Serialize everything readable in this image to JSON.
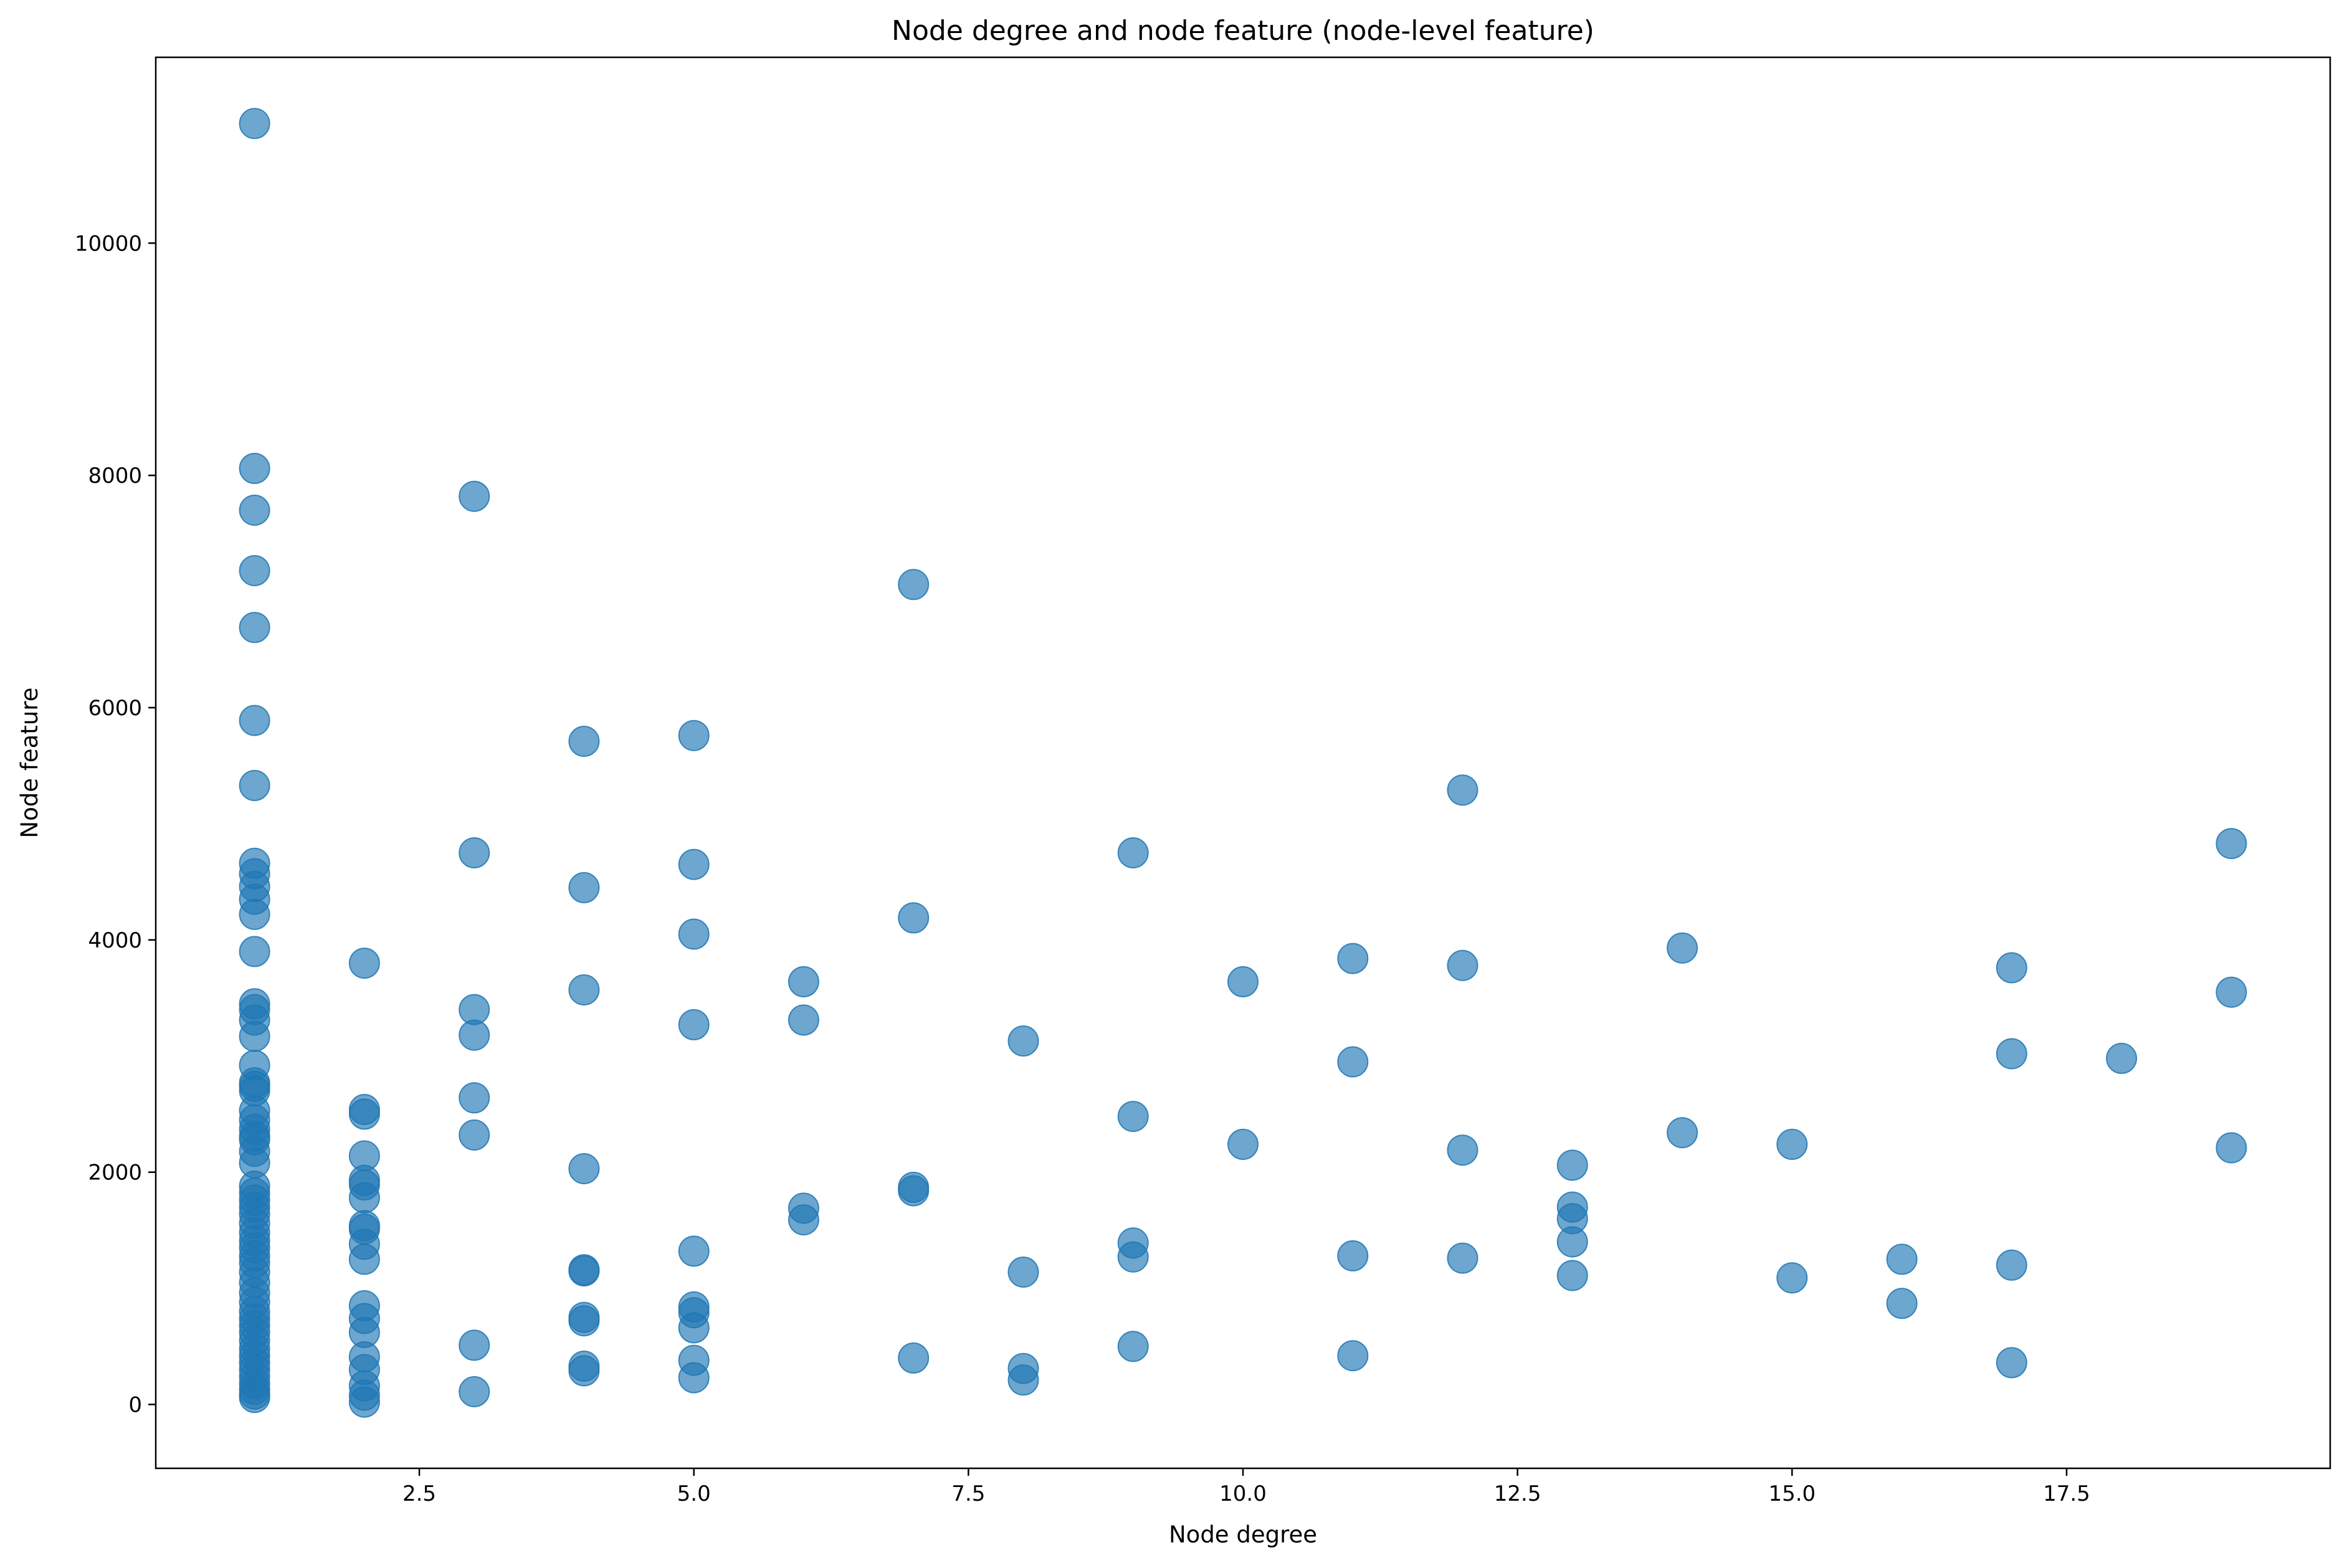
{
  "chart_data": {
    "type": "scatter",
    "title": "Node degree and node feature (node-level feature)",
    "xlabel": "Node degree",
    "ylabel": "Node feature",
    "xlim": [
      0.1,
      19.9
    ],
    "ylim": [
      -550,
      11600
    ],
    "xticks": [
      2.5,
      5.0,
      7.5,
      10.0,
      12.5,
      15.0,
      17.5
    ],
    "xtick_labels": [
      "2.5",
      "5.0",
      "7.5",
      "10.0",
      "12.5",
      "15.0",
      "17.5"
    ],
    "yticks": [
      0,
      2000,
      4000,
      6000,
      8000,
      10000
    ],
    "ytick_labels": [
      "0",
      "2000",
      "4000",
      "6000",
      "8000",
      "10000"
    ],
    "grid": false,
    "marker_color": "#1f77b4",
    "marker_alpha": 0.65,
    "series": [
      {
        "points": [
          [
            1,
            11030
          ],
          [
            1,
            8060
          ],
          [
            1,
            7700
          ],
          [
            1,
            7180
          ],
          [
            1,
            6690
          ],
          [
            1,
            5890
          ],
          [
            1,
            5330
          ],
          [
            1,
            4660
          ],
          [
            1,
            4570
          ],
          [
            1,
            4460
          ],
          [
            1,
            4350
          ],
          [
            1,
            4220
          ],
          [
            1,
            3900
          ],
          [
            1,
            3450
          ],
          [
            1,
            3400
          ],
          [
            1,
            3310
          ],
          [
            1,
            3170
          ],
          [
            1,
            2920
          ],
          [
            1,
            2770
          ],
          [
            1,
            2740
          ],
          [
            1,
            2700
          ],
          [
            1,
            2530
          ],
          [
            1,
            2450
          ],
          [
            1,
            2370
          ],
          [
            1,
            2310
          ],
          [
            1,
            2280
          ],
          [
            1,
            2180
          ],
          [
            1,
            2080
          ],
          [
            1,
            1880
          ],
          [
            1,
            1820
          ],
          [
            1,
            1760
          ],
          [
            1,
            1700
          ],
          [
            1,
            1640
          ],
          [
            1,
            1560
          ],
          [
            1,
            1480
          ],
          [
            1,
            1410
          ],
          [
            1,
            1350
          ],
          [
            1,
            1280
          ],
          [
            1,
            1220
          ],
          [
            1,
            1140
          ],
          [
            1,
            1050
          ],
          [
            1,
            960
          ],
          [
            1,
            880
          ],
          [
            1,
            800
          ],
          [
            1,
            740
          ],
          [
            1,
            680
          ],
          [
            1,
            620
          ],
          [
            1,
            550
          ],
          [
            1,
            480
          ],
          [
            1,
            420
          ],
          [
            1,
            360
          ],
          [
            1,
            300
          ],
          [
            1,
            240
          ],
          [
            1,
            180
          ],
          [
            1,
            130
          ],
          [
            1,
            90
          ],
          [
            1,
            60
          ],
          [
            2,
            3800
          ],
          [
            2,
            2540
          ],
          [
            2,
            2500
          ],
          [
            2,
            2140
          ],
          [
            2,
            1930
          ],
          [
            2,
            1890
          ],
          [
            2,
            1780
          ],
          [
            2,
            1540
          ],
          [
            2,
            1510
          ],
          [
            2,
            1380
          ],
          [
            2,
            1250
          ],
          [
            2,
            850
          ],
          [
            2,
            740
          ],
          [
            2,
            620
          ],
          [
            2,
            410
          ],
          [
            2,
            300
          ],
          [
            2,
            160
          ],
          [
            2,
            80
          ],
          [
            2,
            20
          ],
          [
            3,
            7820
          ],
          [
            3,
            4750
          ],
          [
            3,
            3400
          ],
          [
            3,
            3180
          ],
          [
            3,
            2640
          ],
          [
            3,
            2320
          ],
          [
            3,
            510
          ],
          [
            3,
            110
          ],
          [
            4,
            5710
          ],
          [
            4,
            4450
          ],
          [
            4,
            3570
          ],
          [
            4,
            2030
          ],
          [
            4,
            1160
          ],
          [
            4,
            1150
          ],
          [
            4,
            750
          ],
          [
            4,
            720
          ],
          [
            4,
            330
          ],
          [
            4,
            290
          ],
          [
            5,
            5760
          ],
          [
            5,
            4650
          ],
          [
            5,
            4050
          ],
          [
            5,
            3270
          ],
          [
            5,
            1320
          ],
          [
            5,
            840
          ],
          [
            5,
            790
          ],
          [
            5,
            660
          ],
          [
            5,
            380
          ],
          [
            5,
            230
          ],
          [
            6,
            3640
          ],
          [
            6,
            3310
          ],
          [
            6,
            1690
          ],
          [
            6,
            1590
          ],
          [
            7,
            7060
          ],
          [
            7,
            4190
          ],
          [
            7,
            1870
          ],
          [
            7,
            1840
          ],
          [
            7,
            400
          ],
          [
            8,
            3130
          ],
          [
            8,
            1140
          ],
          [
            8,
            310
          ],
          [
            8,
            210
          ],
          [
            9,
            4750
          ],
          [
            9,
            2480
          ],
          [
            9,
            1390
          ],
          [
            9,
            1270
          ],
          [
            9,
            500
          ],
          [
            10,
            3640
          ],
          [
            10,
            2240
          ],
          [
            11,
            3840
          ],
          [
            11,
            2950
          ],
          [
            11,
            1280
          ],
          [
            11,
            420
          ],
          [
            12,
            5290
          ],
          [
            12,
            3780
          ],
          [
            12,
            2190
          ],
          [
            12,
            1260
          ],
          [
            13,
            2060
          ],
          [
            13,
            1700
          ],
          [
            13,
            1600
          ],
          [
            13,
            1400
          ],
          [
            13,
            1110
          ],
          [
            14,
            3930
          ],
          [
            14,
            2340
          ],
          [
            15,
            2240
          ],
          [
            15,
            1090
          ],
          [
            16,
            1250
          ],
          [
            16,
            870
          ],
          [
            17,
            3760
          ],
          [
            17,
            3020
          ],
          [
            17,
            1200
          ],
          [
            17,
            360
          ],
          [
            18,
            2980
          ],
          [
            19,
            4830
          ],
          [
            19,
            3550
          ],
          [
            19,
            2210
          ]
        ]
      }
    ]
  }
}
